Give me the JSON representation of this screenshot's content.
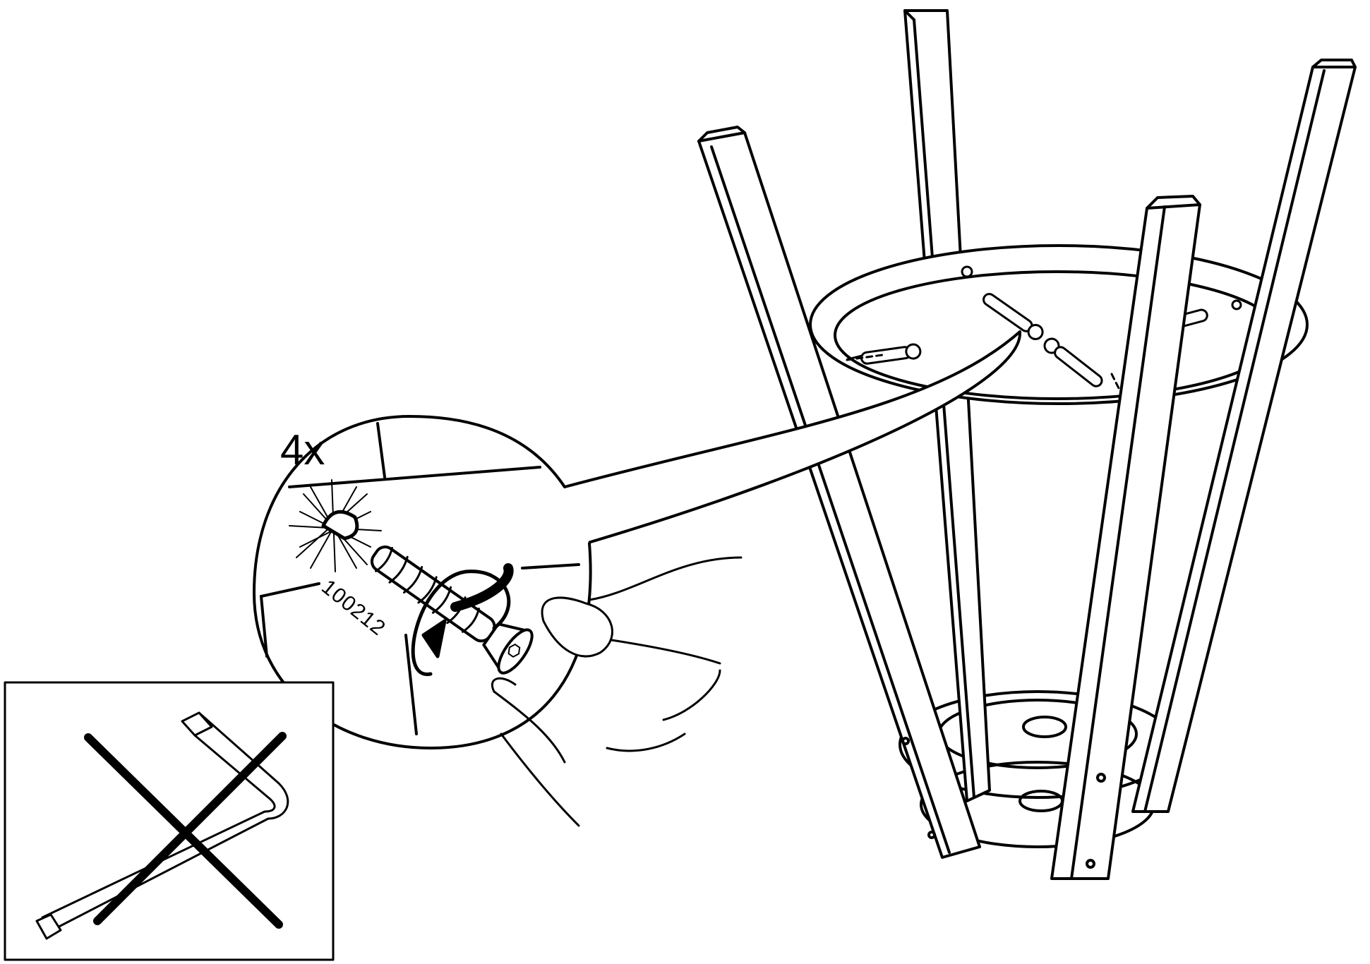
{
  "instruction": {
    "quantity": "4x",
    "part_number": "100212"
  },
  "callouts": {
    "detail_view": "screw-insertion-detail",
    "warning_panel": "do-not-use-allen-key"
  },
  "icons": {
    "tool": "allen-key-icon",
    "prohibition": "cross-out-icon",
    "rotation": "clockwise-arrow-icon"
  },
  "colors": {
    "line": "#000000",
    "background": "#ffffff"
  }
}
